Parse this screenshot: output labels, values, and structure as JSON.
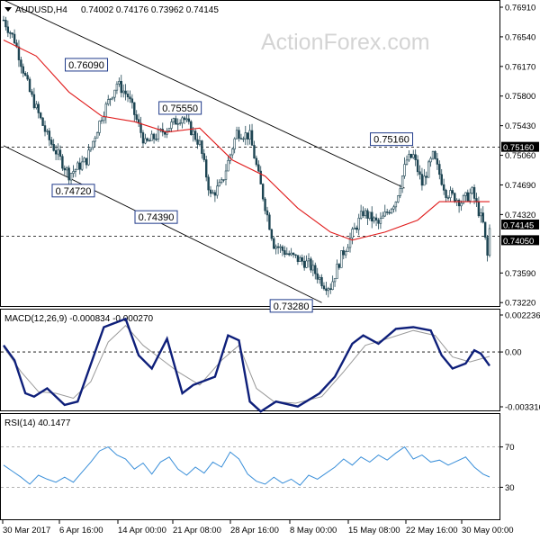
{
  "header": {
    "symbol_label": "AUDUSD,H4",
    "ohlc_label": "0.74002 0.74176 0.73962 0.74145"
  },
  "watermark": "ActionForex.com",
  "colors": {
    "candle": "#1d4452",
    "ma": "#e01b1b",
    "macd": "#0e1f7a",
    "signal": "#9a9a9a",
    "rsi": "#3a8fd9",
    "tag_bg": "#000000",
    "tag_text": "#ffffff",
    "annotation_border": "#1f3a8a"
  },
  "chart_data": [
    {
      "type": "candlestick",
      "panel": "price",
      "y_axis": {
        "range": [
          0.732,
          0.7691
        ],
        "ticks": [
          {
            "v": 0.7691,
            "label": "0.76910"
          },
          {
            "v": 0.7654,
            "label": "0.76540"
          },
          {
            "v": 0.7617,
            "label": "0.76170"
          },
          {
            "v": 0.758,
            "label": "0.75800"
          },
          {
            "v": 0.7543,
            "label": "0.75430"
          },
          {
            "v": 0.7506,
            "label": "0.75060"
          },
          {
            "v": 0.7469,
            "label": "0.74690"
          },
          {
            "v": 0.7432,
            "label": "0.74320"
          },
          {
            "v": 0.7359,
            "label": "0.73590"
          },
          {
            "v": 0.7322,
            "label": "0.73220"
          }
        ]
      },
      "x_axis": {
        "labels": [
          "30 Mar 2017",
          "6 Apr 16:00",
          "14 Apr 00:00",
          "21 Apr 08:00",
          "28 Apr 16:00",
          "8 May 00:00",
          "15 May 08:00",
          "22 May 16:00",
          "30 May 00:00"
        ]
      },
      "price_path": [
        {
          "t": 0,
          "p": 0.7675
        },
        {
          "t": 5,
          "p": 0.765
        },
        {
          "t": 12,
          "p": 0.7585
        },
        {
          "t": 20,
          "p": 0.753
        },
        {
          "t": 30,
          "p": 0.7482
        },
        {
          "t": 38,
          "p": 0.75
        },
        {
          "t": 45,
          "p": 0.7555
        },
        {
          "t": 52,
          "p": 0.7596
        },
        {
          "t": 57,
          "p": 0.758
        },
        {
          "t": 65,
          "p": 0.752
        },
        {
          "t": 75,
          "p": 0.754
        },
        {
          "t": 82,
          "p": 0.7555
        },
        {
          "t": 90,
          "p": 0.752
        },
        {
          "t": 95,
          "p": 0.7455
        },
        {
          "t": 100,
          "p": 0.747
        },
        {
          "t": 107,
          "p": 0.7535
        },
        {
          "t": 113,
          "p": 0.753
        },
        {
          "t": 119,
          "p": 0.7455
        },
        {
          "t": 124,
          "p": 0.7395
        },
        {
          "t": 132,
          "p": 0.738
        },
        {
          "t": 140,
          "p": 0.737
        },
        {
          "t": 147,
          "p": 0.7345
        },
        {
          "t": 150,
          "p": 0.7342
        },
        {
          "t": 155,
          "p": 0.738
        },
        {
          "t": 165,
          "p": 0.7435
        },
        {
          "t": 172,
          "p": 0.742
        },
        {
          "t": 180,
          "p": 0.745
        },
        {
          "t": 185,
          "p": 0.75
        },
        {
          "t": 188,
          "p": 0.7505
        },
        {
          "t": 192,
          "p": 0.747
        },
        {
          "t": 197,
          "p": 0.7505
        },
        {
          "t": 203,
          "p": 0.746
        },
        {
          "t": 210,
          "p": 0.7448
        },
        {
          "t": 215,
          "p": 0.746
        },
        {
          "t": 220,
          "p": 0.742
        },
        {
          "t": 222,
          "p": 0.738
        },
        {
          "t": 223,
          "p": 0.74145
        }
      ],
      "moving_average": [
        {
          "t": 0,
          "p": 0.765
        },
        {
          "t": 15,
          "p": 0.763
        },
        {
          "t": 30,
          "p": 0.7585
        },
        {
          "t": 45,
          "p": 0.7555
        },
        {
          "t": 60,
          "p": 0.7548
        },
        {
          "t": 75,
          "p": 0.7535
        },
        {
          "t": 90,
          "p": 0.754
        },
        {
          "t": 105,
          "p": 0.75
        },
        {
          "t": 120,
          "p": 0.748
        },
        {
          "t": 135,
          "p": 0.744
        },
        {
          "t": 150,
          "p": 0.741
        },
        {
          "t": 160,
          "p": 0.74
        },
        {
          "t": 175,
          "p": 0.741
        },
        {
          "t": 190,
          "p": 0.7425
        },
        {
          "t": 200,
          "p": 0.7448
        },
        {
          "t": 210,
          "p": 0.7448
        },
        {
          "t": 223,
          "p": 0.7448
        }
      ],
      "channel": {
        "upper": [
          {
            "t": 0,
            "p": 0.77
          },
          {
            "t": 184,
            "p": 0.7465
          }
        ],
        "lower": [
          {
            "t": 0,
            "p": 0.7518
          },
          {
            "t": 146,
            "p": 0.7322
          }
        ]
      },
      "reference_lines": [
        {
          "v": 0.7516,
          "style": "dashed"
        },
        {
          "v": 0.7405,
          "style": "dashed"
        }
      ],
      "price_tags": [
        {
          "v": 0.7516,
          "label": "0.75160"
        },
        {
          "v": 0.74145,
          "label": "0.74145"
        },
        {
          "v": 0.7405,
          "label": "0.74050"
        }
      ],
      "annotations": [
        {
          "label": "0.76090",
          "t": 38,
          "p": 0.7609,
          "pos": "above"
        },
        {
          "label": "0.74720",
          "t": 32,
          "p": 0.7472,
          "pos": "below"
        },
        {
          "label": "0.75550",
          "t": 81,
          "p": 0.7555,
          "pos": "above"
        },
        {
          "label": "0.74390",
          "t": 70,
          "p": 0.7439,
          "pos": "below"
        },
        {
          "label": "0.73280",
          "t": 132,
          "p": 0.7328,
          "pos": "below"
        },
        {
          "label": "0.75160",
          "t": 178,
          "p": 0.7516,
          "pos": "above"
        }
      ]
    },
    {
      "type": "line",
      "panel": "macd",
      "label": "MACD(12,26,9) -0.000834 -0.000270",
      "y_axis": {
        "range": [
          -0.003316,
          0.002236
        ],
        "ticks": [
          {
            "v": 0.002236,
            "label": "0.002236"
          },
          {
            "v": 0.0,
            "label": "0.00"
          },
          {
            "v": -0.003316,
            "label": "-0.003316"
          }
        ]
      },
      "series": [
        {
          "role": "macd",
          "points": [
            {
              "t": 0,
              "v": 0.0004
            },
            {
              "t": 5,
              "v": -0.0005
            },
            {
              "t": 10,
              "v": -0.0025
            },
            {
              "t": 14,
              "v": -0.0027
            },
            {
              "t": 20,
              "v": -0.0022
            },
            {
              "t": 28,
              "v": -0.0032
            },
            {
              "t": 34,
              "v": -0.003
            },
            {
              "t": 38,
              "v": -0.0015
            },
            {
              "t": 46,
              "v": 0.0015
            },
            {
              "t": 52,
              "v": 0.0018
            },
            {
              "t": 56,
              "v": 0.002
            },
            {
              "t": 62,
              "v": -0.0002
            },
            {
              "t": 68,
              "v": -0.001
            },
            {
              "t": 75,
              "v": 0.0008
            },
            {
              "t": 82,
              "v": -0.0025
            },
            {
              "t": 87,
              "v": -0.002
            },
            {
              "t": 97,
              "v": -0.0015
            },
            {
              "t": 103,
              "v": 0.001
            },
            {
              "t": 108,
              "v": 0.0007
            },
            {
              "t": 113,
              "v": -0.003
            },
            {
              "t": 118,
              "v": -0.0036
            },
            {
              "t": 125,
              "v": -0.003
            },
            {
              "t": 135,
              "v": -0.0033
            },
            {
              "t": 145,
              "v": -0.0025
            },
            {
              "t": 152,
              "v": -0.0015
            },
            {
              "t": 160,
              "v": 0.0005
            },
            {
              "t": 165,
              "v": 0.001
            },
            {
              "t": 172,
              "v": 0.0005
            },
            {
              "t": 180,
              "v": 0.0014
            },
            {
              "t": 188,
              "v": 0.0015
            },
            {
              "t": 196,
              "v": 0.0013
            },
            {
              "t": 201,
              "v": -0.0002
            },
            {
              "t": 206,
              "v": -0.001
            },
            {
              "t": 212,
              "v": -0.0007
            },
            {
              "t": 216,
              "v": 0.0001
            },
            {
              "t": 219,
              "v": -0.0001
            },
            {
              "t": 223,
              "v": -0.000834
            }
          ]
        },
        {
          "role": "signal",
          "points": [
            {
              "t": 0,
              "v": 0.0003
            },
            {
              "t": 8,
              "v": -0.0012
            },
            {
              "t": 16,
              "v": -0.0024
            },
            {
              "t": 24,
              "v": -0.0025
            },
            {
              "t": 32,
              "v": -0.0028
            },
            {
              "t": 40,
              "v": -0.0018
            },
            {
              "t": 48,
              "v": 0.0006
            },
            {
              "t": 56,
              "v": 0.0016
            },
            {
              "t": 64,
              "v": 0.0004
            },
            {
              "t": 72,
              "v": -0.0004
            },
            {
              "t": 80,
              "v": -0.0012
            },
            {
              "t": 90,
              "v": -0.002
            },
            {
              "t": 100,
              "v": -0.0005
            },
            {
              "t": 108,
              "v": 0.0004
            },
            {
              "t": 116,
              "v": -0.0022
            },
            {
              "t": 124,
              "v": -0.003
            },
            {
              "t": 134,
              "v": -0.0031
            },
            {
              "t": 146,
              "v": -0.0027
            },
            {
              "t": 156,
              "v": -0.0012
            },
            {
              "t": 166,
              "v": 0.0004
            },
            {
              "t": 176,
              "v": 0.0008
            },
            {
              "t": 188,
              "v": 0.0013
            },
            {
              "t": 198,
              "v": 0.001
            },
            {
              "t": 206,
              "v": -0.0003
            },
            {
              "t": 214,
              "v": -0.0006
            },
            {
              "t": 223,
              "v": -0.00027
            }
          ]
        }
      ],
      "reference_lines": [
        {
          "v": 0.0,
          "style": "dashed"
        }
      ]
    },
    {
      "type": "line",
      "panel": "rsi",
      "label": "RSI(14) 40.1477",
      "y_axis": {
        "range": [
          0,
          100
        ],
        "ticks": [
          {
            "v": 70,
            "label": "70"
          },
          {
            "v": 30,
            "label": "30"
          }
        ]
      },
      "reference_lines": [
        {
          "v": 70,
          "style": "dashed"
        },
        {
          "v": 30,
          "style": "dashed"
        }
      ],
      "series": [
        {
          "role": "rsi",
          "points": [
            {
              "t": 0,
              "v": 52
            },
            {
              "t": 4,
              "v": 46
            },
            {
              "t": 8,
              "v": 40
            },
            {
              "t": 12,
              "v": 33
            },
            {
              "t": 16,
              "v": 42
            },
            {
              "t": 20,
              "v": 38
            },
            {
              "t": 24,
              "v": 35
            },
            {
              "t": 28,
              "v": 40
            },
            {
              "t": 32,
              "v": 35
            },
            {
              "t": 36,
              "v": 45
            },
            {
              "t": 40,
              "v": 55
            },
            {
              "t": 44,
              "v": 66
            },
            {
              "t": 48,
              "v": 70
            },
            {
              "t": 52,
              "v": 62
            },
            {
              "t": 56,
              "v": 58
            },
            {
              "t": 60,
              "v": 48
            },
            {
              "t": 64,
              "v": 54
            },
            {
              "t": 68,
              "v": 43
            },
            {
              "t": 72,
              "v": 55
            },
            {
              "t": 76,
              "v": 60
            },
            {
              "t": 80,
              "v": 48
            },
            {
              "t": 84,
              "v": 42
            },
            {
              "t": 88,
              "v": 50
            },
            {
              "t": 92,
              "v": 44
            },
            {
              "t": 96,
              "v": 55
            },
            {
              "t": 100,
              "v": 50
            },
            {
              "t": 104,
              "v": 65
            },
            {
              "t": 108,
              "v": 58
            },
            {
              "t": 112,
              "v": 43
            },
            {
              "t": 116,
              "v": 36
            },
            {
              "t": 120,
              "v": 33
            },
            {
              "t": 124,
              "v": 40
            },
            {
              "t": 128,
              "v": 34
            },
            {
              "t": 132,
              "v": 38
            },
            {
              "t": 136,
              "v": 32
            },
            {
              "t": 140,
              "v": 42
            },
            {
              "t": 144,
              "v": 38
            },
            {
              "t": 148,
              "v": 44
            },
            {
              "t": 152,
              "v": 50
            },
            {
              "t": 156,
              "v": 58
            },
            {
              "t": 160,
              "v": 52
            },
            {
              "t": 164,
              "v": 60
            },
            {
              "t": 168,
              "v": 55
            },
            {
              "t": 172,
              "v": 62
            },
            {
              "t": 176,
              "v": 57
            },
            {
              "t": 180,
              "v": 64
            },
            {
              "t": 184,
              "v": 70
            },
            {
              "t": 188,
              "v": 58
            },
            {
              "t": 192,
              "v": 62
            },
            {
              "t": 196,
              "v": 55
            },
            {
              "t": 200,
              "v": 57
            },
            {
              "t": 204,
              "v": 52
            },
            {
              "t": 208,
              "v": 56
            },
            {
              "t": 212,
              "v": 60
            },
            {
              "t": 216,
              "v": 50
            },
            {
              "t": 220,
              "v": 43
            },
            {
              "t": 223,
              "v": 40.1477
            }
          ]
        }
      ]
    }
  ]
}
